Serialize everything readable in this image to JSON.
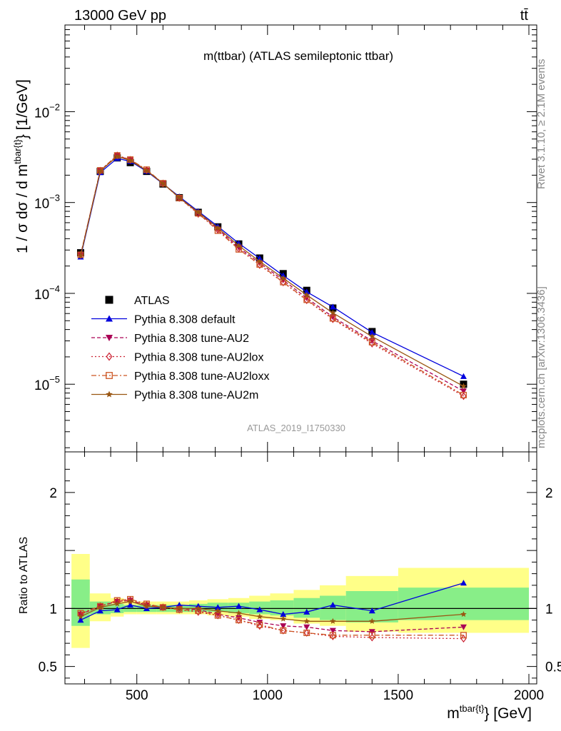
{
  "header": {
    "left": "13000 GeV pp",
    "right": "tt̄"
  },
  "side_labels": {
    "rivet": "Rivet 3.1.10, ≥ 2.1M events",
    "mcplots": "mcplots.cern.ch [arXiv:1306.3436]"
  },
  "watermark": "ATLAS_2019_I1750330",
  "chart_data": [
    {
      "type": "line",
      "panel": "main",
      "title": "m(ttbar) (ATLAS semileptonic ttbar)",
      "ylabel": "1 / σ dσ / d m^{tbar{t}} [1/GeV]",
      "ylabel_parts": {
        "main": "1 / σ dσ / d m",
        "sup": "tbar{t}",
        "close": "} [1/GeV]"
      },
      "yscale": "log",
      "ylim": [
        1.8e-06,
        0.09
      ],
      "xlim": [
        225,
        2030
      ],
      "yticks": [
        {
          "value": 1e-05,
          "label": "10",
          "exp": "−5"
        },
        {
          "value": 0.0001,
          "label": "10",
          "exp": "−4"
        },
        {
          "value": 0.001,
          "label": "10",
          "exp": "−3"
        },
        {
          "value": 0.01,
          "label": "10",
          "exp": "−2"
        }
      ],
      "legend_position": "lower-left",
      "x": [
        285,
        360,
        425,
        475,
        537.5,
        600,
        662.5,
        735,
        810,
        890,
        970,
        1060,
        1150,
        1250,
        1400,
        1750
      ],
      "data": {
        "name": "ATLAS",
        "values": [
          0.00028,
          0.0022,
          0.0031,
          0.00275,
          0.0022,
          0.0016,
          0.00113,
          0.00078,
          0.00054,
          0.00035,
          0.000245,
          0.000165,
          0.000108,
          6.9e-05,
          3.8e-05,
          1e-05
        ]
      },
      "series": [
        {
          "name": "Pythia 8.308 default",
          "color": "#0000dd",
          "marker": "triangle-up",
          "dash": "solid",
          "values": [
            0.000252,
            0.00214,
            0.00306,
            0.00284,
            0.00221,
            0.00161,
            0.00116,
            0.0008,
            0.000545,
            0.000355,
            0.000243,
            0.000157,
            0.000104,
            7.1e-05,
            3.72e-05,
            1.22e-05
          ]
        },
        {
          "name": "Pythia 8.308 tune-AU2",
          "color": "#aa0055",
          "marker": "triangle-down",
          "dash": "5,3",
          "values": [
            0.000266,
            0.00224,
            0.00328,
            0.00294,
            0.00226,
            0.00162,
            0.00113,
            0.00077,
            0.00051,
            0.00032,
            0.000216,
            0.00014,
            8.9e-05,
            5.5e-05,
            3e-05,
            8.4e-06
          ]
        },
        {
          "name": "Pythia 8.308 tune-AU2lox",
          "color": "#cc2233",
          "marker": "diamond-open",
          "dash": "2,3",
          "values": [
            0.000264,
            0.00224,
            0.0033,
            0.00295,
            0.00227,
            0.00162,
            0.00112,
            0.00075,
            0.0005,
            0.00031,
            0.000205,
            0.000132,
            8.4e-05,
            5.2e-05,
            2.8e-05,
            7.4e-06
          ]
        },
        {
          "name": "Pythia 8.308 tune-AU2loxx",
          "color": "#cc5522",
          "marker": "square-open",
          "dash": "7,3,2,3",
          "values": [
            0.000266,
            0.00226,
            0.0033,
            0.00297,
            0.0023,
            0.00163,
            0.00112,
            0.00076,
            0.00049,
            0.000305,
            0.000208,
            0.000133,
            8.5e-05,
            5.3e-05,
            2.9e-05,
            7.6e-06
          ]
        },
        {
          "name": "Pythia 8.308 tune-AU2m",
          "color": "#995511",
          "marker": "star",
          "dash": "solid",
          "values": [
            0.00026,
            0.00222,
            0.00322,
            0.0029,
            0.00225,
            0.00162,
            0.00113,
            0.00078,
            0.000525,
            0.000335,
            0.000225,
            0.000147,
            9.6e-05,
            6.1e-05,
            3.35e-05,
            9.5e-06
          ]
        }
      ]
    },
    {
      "type": "line",
      "panel": "ratio",
      "xlabel": "m^{tbar{t}} [GeV]",
      "xlabel_parts": {
        "main": "m",
        "sup": "tbar{t}",
        "close": "} [GeV]"
      },
      "ylabel": "Ratio to ATLAS",
      "ylim": [
        0.35,
        2.35
      ],
      "xlim": [
        225,
        2030
      ],
      "xticks": [
        500,
        1000,
        1500,
        2000
      ],
      "yticks": [
        0.5,
        1,
        2
      ],
      "bands": {
        "edges": [
          250,
          320,
          400,
          450,
          500,
          575,
          625,
          700,
          770,
          850,
          930,
          1010,
          1100,
          1200,
          1300,
          1500,
          2000
        ],
        "inner": [
          [
            0.85,
            1.25
          ],
          [
            0.95,
            1.06
          ],
          [
            0.96,
            1.04
          ],
          [
            0.97,
            1.03
          ],
          [
            0.97,
            1.03
          ],
          [
            0.97,
            1.03
          ],
          [
            0.97,
            1.03
          ],
          [
            0.97,
            1.04
          ],
          [
            0.97,
            1.05
          ],
          [
            0.96,
            1.05
          ],
          [
            0.95,
            1.06
          ],
          [
            0.94,
            1.07
          ],
          [
            0.92,
            1.09
          ],
          [
            0.9,
            1.11
          ],
          [
            0.88,
            1.15
          ],
          [
            0.9,
            1.18
          ]
        ],
        "outer": [
          [
            0.66,
            1.47
          ],
          [
            0.89,
            1.13
          ],
          [
            0.93,
            1.09
          ],
          [
            0.95,
            1.07
          ],
          [
            0.95,
            1.06
          ],
          [
            0.95,
            1.06
          ],
          [
            0.95,
            1.06
          ],
          [
            0.95,
            1.07
          ],
          [
            0.94,
            1.08
          ],
          [
            0.93,
            1.09
          ],
          [
            0.91,
            1.11
          ],
          [
            0.9,
            1.13
          ],
          [
            0.87,
            1.16
          ],
          [
            0.85,
            1.2
          ],
          [
            0.8,
            1.28
          ],
          [
            0.79,
            1.35
          ]
        ]
      },
      "ratios": [
        {
          "name": "Pythia 8.308 default",
          "values": [
            0.9,
            0.98,
            0.99,
            1.03,
            1.0,
            1.01,
            1.03,
            1.02,
            1.01,
            1.02,
            0.99,
            0.95,
            0.97,
            1.03,
            0.98,
            1.22
          ]
        },
        {
          "name": "Pythia 8.308 tune-AU2",
          "values": [
            0.95,
            1.02,
            1.06,
            1.07,
            1.03,
            1.01,
            1.0,
            0.99,
            0.95,
            0.92,
            0.88,
            0.85,
            0.84,
            0.81,
            0.8,
            0.84
          ]
        },
        {
          "name": "Pythia 8.308 tune-AU2lox",
          "values": [
            0.95,
            1.02,
            1.06,
            1.07,
            1.03,
            1.01,
            0.99,
            0.97,
            0.94,
            0.9,
            0.85,
            0.81,
            0.79,
            0.76,
            0.75,
            0.74
          ]
        },
        {
          "name": "Pythia 8.308 tune-AU2loxx",
          "values": [
            0.96,
            1.02,
            1.07,
            1.08,
            1.04,
            1.01,
            0.99,
            0.98,
            0.94,
            0.9,
            0.86,
            0.81,
            0.79,
            0.77,
            0.77,
            0.77
          ]
        },
        {
          "name": "Pythia 8.308 tune-AU2m",
          "values": [
            0.93,
            1.01,
            1.04,
            1.06,
            1.02,
            1.01,
            1.0,
            1.0,
            0.98,
            0.96,
            0.93,
            0.91,
            0.89,
            0.89,
            0.89,
            0.95
          ]
        }
      ]
    }
  ]
}
